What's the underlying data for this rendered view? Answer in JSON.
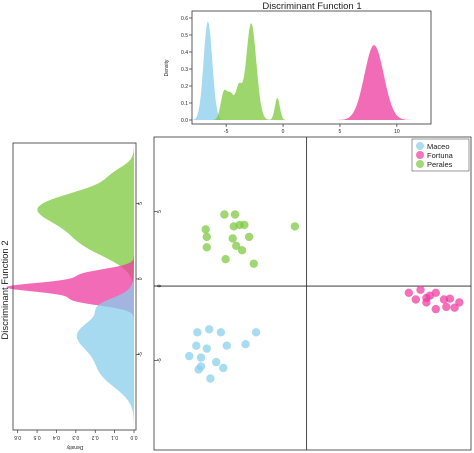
{
  "top_panel": {
    "title": "Discriminant Function 1",
    "ylabel": "Density"
  },
  "left_panel": {
    "title": "Discriminant Function 2",
    "xlabel": "Density"
  },
  "legend": {
    "entries": [
      "Maceo",
      "Fortuna",
      "Perales"
    ],
    "placement": "top-right"
  },
  "colors": {
    "Maceo": "#87CEEB",
    "Fortuna": "#EE3A9F",
    "Perales": "#7CC83C"
  },
  "chart_data": [
    {
      "type": "area",
      "title": "Discriminant Function 1",
      "xlabel": "",
      "ylabel": "Density",
      "xlim": [
        -8,
        13
      ],
      "ylim": [
        0,
        0.6
      ],
      "x_ticks": [
        -5,
        0,
        5,
        10
      ],
      "y_ticks": [
        0.0,
        0.1,
        0.2,
        0.3,
        0.4,
        0.5,
        0.6
      ],
      "grid": false,
      "series": [
        {
          "name": "Maceo",
          "peaks": [
            {
              "mu": -6.6,
              "sigma": 0.38,
              "h": 0.58
            }
          ]
        },
        {
          "name": "Perales",
          "peaks": [
            {
              "mu": -5.2,
              "sigma": 0.28,
              "h": 0.16
            },
            {
              "mu": -4.6,
              "sigma": 0.28,
              "h": 0.14
            },
            {
              "mu": -3.9,
              "sigma": 0.28,
              "h": 0.18
            },
            {
              "mu": -2.8,
              "sigma": 0.45,
              "h": 0.57
            },
            {
              "mu": -0.5,
              "sigma": 0.22,
              "h": 0.13
            }
          ]
        },
        {
          "name": "Fortuna",
          "peaks": [
            {
              "mu": 8.0,
              "sigma": 0.85,
              "h": 0.44
            }
          ]
        }
      ]
    },
    {
      "type": "area",
      "title": "Discriminant Function 2",
      "xlabel": "Density",
      "orientation": "horizontal",
      "ylim": [
        -10,
        9
      ],
      "xlim": [
        0.65,
        0
      ],
      "x_ticks": [
        0.6,
        0.5,
        0.4,
        0.3,
        0.2,
        0.1,
        0.0
      ],
      "y_ticks": [
        -5,
        0,
        5
      ],
      "grid": false,
      "series": [
        {
          "name": "Perales",
          "peaks": [
            {
              "mu": 4.7,
              "sigma": 1.1,
              "h": 0.48
            },
            {
              "mu": 2.4,
              "sigma": 1.0,
              "h": 0.23
            },
            {
              "mu": 7.0,
              "sigma": 0.5,
              "h": 0.06
            }
          ]
        },
        {
          "name": "Fortuna",
          "peaks": [
            {
              "mu": -0.55,
              "sigma": 0.33,
              "h": 0.63
            },
            {
              "mu": 0.3,
              "sigma": 0.35,
              "h": 0.26
            },
            {
              "mu": -1.4,
              "sigma": 0.35,
              "h": 0.3
            }
          ]
        },
        {
          "name": "Maceo",
          "peaks": [
            {
              "mu": -3.7,
              "sigma": 1.25,
              "h": 0.29
            },
            {
              "mu": -6.3,
              "sigma": 1.0,
              "h": 0.14
            },
            {
              "mu": -1.7,
              "sigma": 0.5,
              "h": 0.1
            }
          ]
        }
      ]
    },
    {
      "type": "scatter",
      "title": "",
      "xlabel": "Discriminant Function 1",
      "ylabel": "Discriminant Function 2",
      "xlim": [
        -13,
        14
      ],
      "ylim": [
        -11,
        10
      ],
      "x_ticks": [],
      "y_ticks": [
        -5,
        0,
        5
      ],
      "grid": false,
      "reference_lines": {
        "x": 0,
        "y": 0
      },
      "legend": "top-right",
      "series": [
        {
          "name": "Maceo",
          "points": [
            [
              -9.3,
              -3.1
            ],
            [
              -8.3,
              -2.9
            ],
            [
              -7.3,
              -3.1
            ],
            [
              -4.3,
              -3.1
            ],
            [
              -9.4,
              -4.0
            ],
            [
              -8.5,
              -4.2
            ],
            [
              -6.8,
              -4.0
            ],
            [
              -10.0,
              -4.7
            ],
            [
              -9.0,
              -4.8
            ],
            [
              -7.7,
              -5.1
            ],
            [
              -9.0,
              -5.4
            ],
            [
              -7.1,
              -5.5
            ],
            [
              -8.2,
              -6.2
            ],
            [
              -9.2,
              -5.6
            ],
            [
              -5.2,
              -3.9
            ]
          ]
        },
        {
          "name": "Fortuna",
          "points": [
            [
              8.7,
              -0.45
            ],
            [
              9.7,
              -0.25
            ],
            [
              11.0,
              -0.45
            ],
            [
              9.3,
              -0.9
            ],
            [
              10.2,
              -0.8
            ],
            [
              11.7,
              -0.9
            ],
            [
              12.2,
              -0.85
            ],
            [
              13.0,
              -1.1
            ],
            [
              10.5,
              -0.65
            ],
            [
              11.0,
              -1.55
            ],
            [
              11.9,
              -1.4
            ],
            [
              12.6,
              -1.45
            ],
            [
              10.2,
              -1.1
            ]
          ]
        },
        {
          "name": "Perales",
          "points": [
            [
              -6.1,
              4.8
            ],
            [
              -7.0,
              4.8
            ],
            [
              -5.3,
              4.1
            ],
            [
              -6.2,
              4.0
            ],
            [
              -5.7,
              4.1
            ],
            [
              -8.6,
              3.8
            ],
            [
              -1.0,
              4.0
            ],
            [
              -8.5,
              3.3
            ],
            [
              -6.3,
              3.2
            ],
            [
              -4.9,
              3.3
            ],
            [
              -6.0,
              2.7
            ],
            [
              -8.5,
              2.6
            ],
            [
              -5.5,
              2.4
            ],
            [
              -6.9,
              1.8
            ],
            [
              -4.5,
              1.5
            ]
          ]
        }
      ]
    }
  ]
}
